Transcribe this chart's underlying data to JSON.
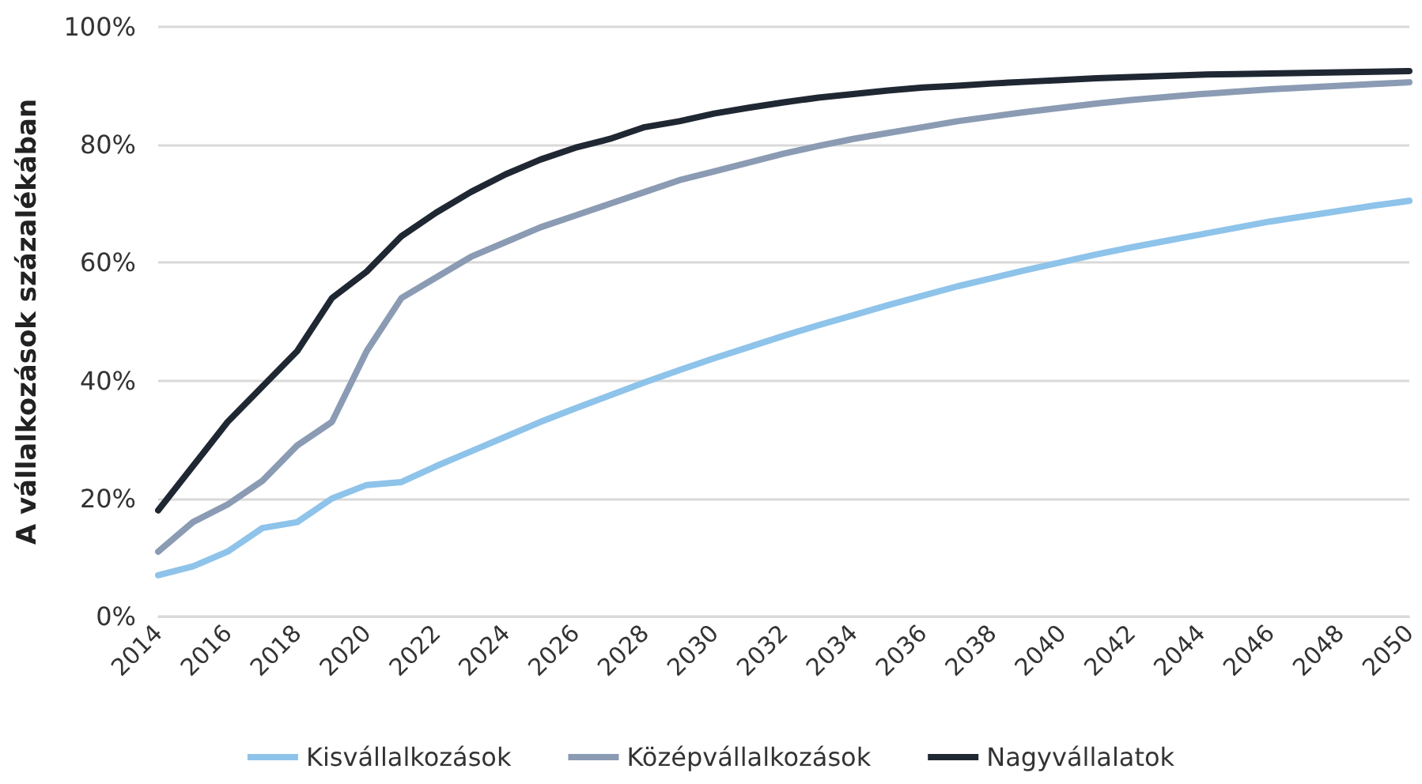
{
  "chart_data": {
    "type": "line",
    "ylabel": "A vállalkozások százalékában",
    "x": [
      2014,
      2015,
      2016,
      2017,
      2018,
      2019,
      2020,
      2021,
      2022,
      2023,
      2024,
      2025,
      2026,
      2027,
      2028,
      2029,
      2030,
      2031,
      2032,
      2033,
      2034,
      2035,
      2036,
      2037,
      2038,
      2039,
      2040,
      2041,
      2042,
      2043,
      2044,
      2045,
      2046,
      2047,
      2048,
      2049,
      2050
    ],
    "series": [
      {
        "name": "Kisvállalkozások",
        "color": "#8ec3ea",
        "values": [
          7,
          8.5,
          11,
          15,
          16,
          20,
          22.3,
          22.8,
          25.5,
          28,
          30.5,
          33,
          35.3,
          37.5,
          39.7,
          41.8,
          43.8,
          45.7,
          47.6,
          49.4,
          51.1,
          52.8,
          54.4,
          56,
          57.4,
          58.8,
          60.1,
          61.4,
          62.6,
          63.7,
          64.8,
          65.9,
          67,
          67.9,
          68.8,
          69.7,
          70.5
        ]
      },
      {
        "name": "Középvállalkozások",
        "color": "#8a9bb3",
        "values": [
          11,
          16,
          19,
          23,
          29,
          33,
          45,
          54,
          57.5,
          61,
          63.5,
          66,
          68,
          70,
          72,
          74,
          75.5,
          77,
          78.5,
          79.8,
          81,
          82,
          83,
          84,
          84.8,
          85.6,
          86.3,
          87,
          87.6,
          88.1,
          88.6,
          89,
          89.4,
          89.7,
          90,
          90.3,
          90.6
        ]
      },
      {
        "name": "Nagyvállalatok",
        "color": "#1f2733",
        "values": [
          18,
          25.5,
          33,
          39,
          45,
          54,
          58.5,
          64.5,
          68.5,
          72,
          75,
          77.5,
          79.5,
          81,
          83,
          84,
          85.3,
          86.3,
          87.2,
          88,
          88.6,
          89.2,
          89.7,
          90,
          90.4,
          90.7,
          91,
          91.3,
          91.5,
          91.7,
          91.9,
          92,
          92.1,
          92.2,
          92.3,
          92.4,
          92.5
        ]
      }
    ],
    "xlim": [
      2014,
      2050
    ],
    "xticks": [
      2014,
      2016,
      2018,
      2020,
      2022,
      2024,
      2026,
      2028,
      2030,
      2032,
      2034,
      2036,
      2038,
      2040,
      2042,
      2044,
      2046,
      2048,
      2050
    ],
    "ylim": [
      0,
      100
    ],
    "yticks": [
      {
        "value": 0,
        "label": "0%"
      },
      {
        "value": 20,
        "label": "20%"
      },
      {
        "value": 40,
        "label": "40%"
      },
      {
        "value": 60,
        "label": "60%"
      },
      {
        "value": 80,
        "label": "80%"
      },
      {
        "value": 100,
        "label": "100%"
      }
    ],
    "grid": "y",
    "legend": "bottom",
    "marker": "none",
    "line_style": "solid"
  }
}
